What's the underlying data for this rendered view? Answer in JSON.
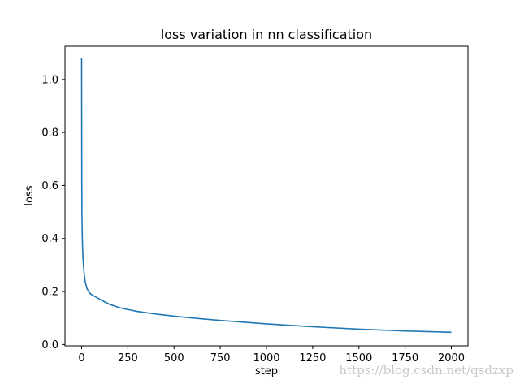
{
  "chart_data": {
    "type": "line",
    "title": "loss variation in nn classification",
    "xlabel": "step",
    "ylabel": "loss",
    "xlim": [
      -90,
      2090
    ],
    "ylim": [
      -0.005,
      1.125
    ],
    "xticks": [
      0,
      250,
      500,
      750,
      1000,
      1250,
      1500,
      1750,
      2000
    ],
    "xtick_labels": [
      "0",
      "250",
      "500",
      "750",
      "1000",
      "1250",
      "1500",
      "1750",
      "2000"
    ],
    "yticks": [
      0.0,
      0.2,
      0.4,
      0.6,
      0.8,
      1.0
    ],
    "ytick_labels": [
      "0.0",
      "0.2",
      "0.4",
      "0.6",
      "0.8",
      "1.0"
    ],
    "grid": false,
    "legend": "none",
    "series": [
      {
        "color": "#1f77b4",
        "x": [
          0,
          1,
          2,
          4,
          6,
          8,
          10,
          15,
          20,
          30,
          40,
          50,
          75,
          100,
          150,
          200,
          250,
          300,
          400,
          500,
          600,
          750,
          1000,
          1250,
          1500,
          1750,
          2000
        ],
        "y": [
          1.08,
          0.62,
          0.48,
          0.4,
          0.35,
          0.32,
          0.3,
          0.26,
          0.235,
          0.21,
          0.198,
          0.19,
          0.18,
          0.17,
          0.152,
          0.14,
          0.132,
          0.125,
          0.115,
          0.107,
          0.1,
          0.091,
          0.078,
          0.067,
          0.058,
          0.051,
          0.046
        ]
      }
    ]
  },
  "watermark": "https://blog.csdn.net/qsdzxp"
}
